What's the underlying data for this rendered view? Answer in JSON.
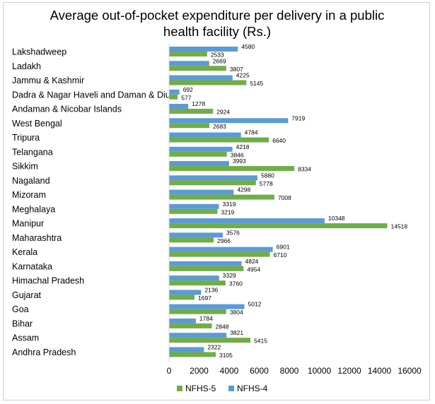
{
  "chart_data": {
    "type": "bar",
    "orientation": "horizontal",
    "title_lines": [
      "Average out-of-pocket expenditure per delivery in a public",
      "health facility (Rs.)"
    ],
    "categories": [
      "Lakshadweep",
      "Ladakh",
      "Jammu & Kashmir",
      "Dadra & Nagar Haveli and Daman & Diu",
      "Andaman & Nicobar Islands",
      "West Bengal",
      "Tripura",
      "Telangana",
      "Sikkim",
      "Nagaland",
      "Mizoram",
      "Meghalaya",
      "Manipur",
      "Maharashtra",
      "Kerala",
      "Karnataka",
      "Himachal Pradesh",
      "Gujarat",
      "Goa",
      "Bihar",
      "Assam",
      "Andhra Pradesh"
    ],
    "series": [
      {
        "name": "NFHS-4",
        "color": "#5b9bd5",
        "values": [
          4580,
          2669,
          4225,
          692,
          1278,
          7919,
          4784,
          4218,
          3993,
          5880,
          4298,
          3319,
          10348,
          3576,
          6901,
          4824,
          3329,
          2136,
          5012,
          1784,
          3821,
          2322
        ]
      },
      {
        "name": "NFHS-5",
        "color": "#70ad47",
        "values": [
          2533,
          3807,
          5145,
          577,
          2924,
          2683,
          6640,
          3846,
          8334,
          5778,
          7008,
          3219,
          14518,
          2966,
          6710,
          4954,
          3760,
          1697,
          3804,
          2848,
          5415,
          3105
        ]
      }
    ],
    "x_ticks": [
      0,
      2000,
      4000,
      6000,
      8000,
      10000,
      12000,
      14000,
      16000
    ],
    "xlim": [
      0,
      16000
    ],
    "legend": [
      "NFHS-5",
      "NFHS-4"
    ],
    "legend_position": "bottom"
  }
}
